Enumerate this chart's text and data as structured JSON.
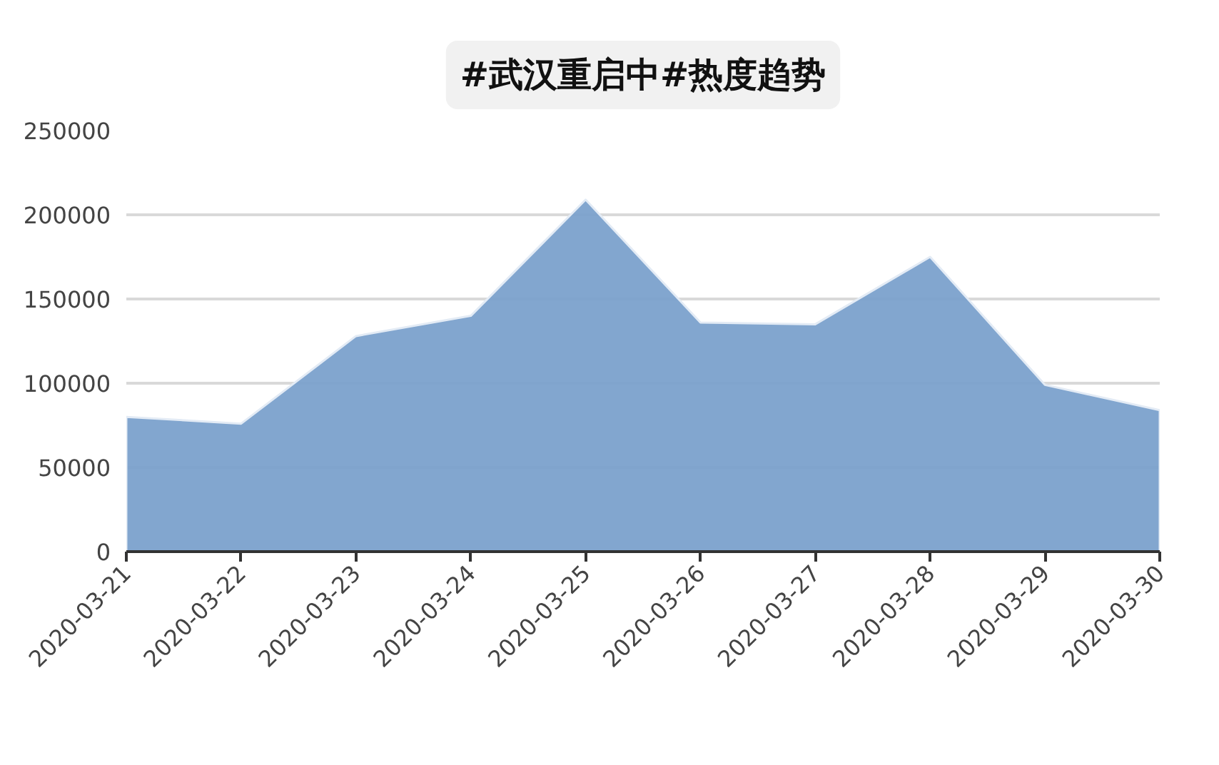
{
  "chart_data": {
    "type": "area",
    "title": "#武汉重启中#热度趋势",
    "categories": [
      "2020-03-21",
      "2020-03-22",
      "2020-03-23",
      "2020-03-24",
      "2020-03-25",
      "2020-03-26",
      "2020-03-27",
      "2020-03-28",
      "2020-03-29",
      "2020-03-30"
    ],
    "values": [
      80000,
      76000,
      128000,
      140000,
      209000,
      136000,
      135000,
      175000,
      99000,
      84000
    ],
    "color": "#7ba1cc",
    "ylim": [
      0,
      250000
    ],
    "yticks": [
      0,
      50000,
      100000,
      150000,
      200000,
      250000
    ],
    "grid": "y"
  }
}
